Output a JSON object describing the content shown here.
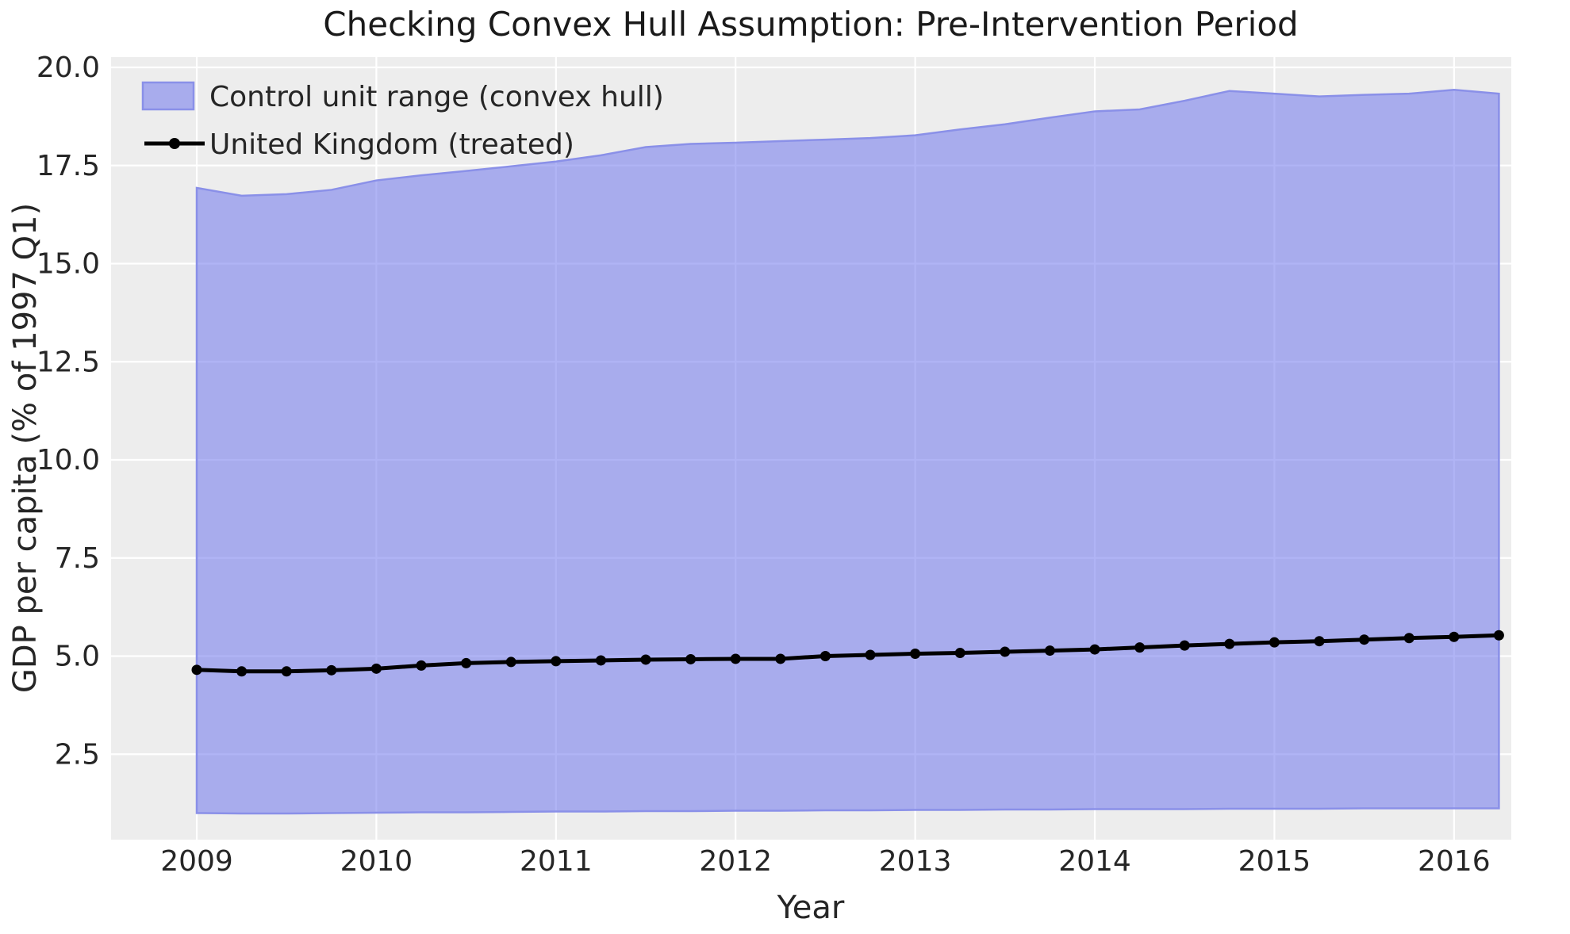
{
  "figure": {
    "title": "Checking Convex Hull Assumption: Pre-Intervention Period",
    "background_color": "#ffffff",
    "plot_background_color": "#ededed",
    "grid_color": "#ffffff"
  },
  "legend": {
    "items": [
      {
        "label": "Control unit range (convex hull)",
        "swatch": "band-swatch"
      },
      {
        "label": "United Kingdom (treated)",
        "swatch": "line-marker-swatch"
      }
    ]
  },
  "colors": {
    "band_fill": "#7076ED",
    "band_fill_opacity": 0.55,
    "band_edge": "#8a90e8",
    "uk_line": "#000000",
    "tick_text": "#262626"
  },
  "chart_data": {
    "type": "area",
    "title": "Checking Convex Hull Assumption: Pre-Intervention Period",
    "xlabel": "Year",
    "ylabel": "GDP per capita (% of 1997 Q1)",
    "x_tick_labels": [
      "2009",
      "2010",
      "2011",
      "2012",
      "2013",
      "2014",
      "2015",
      "2016"
    ],
    "x_tick_values": [
      2009,
      2010,
      2011,
      2012,
      2013,
      2014,
      2015,
      2016
    ],
    "y_tick_labels": [
      "2.5",
      "5.0",
      "7.5",
      "10.0",
      "12.5",
      "15.0",
      "17.5",
      "20.0"
    ],
    "y_tick_values": [
      2.5,
      5.0,
      7.5,
      10.0,
      12.5,
      15.0,
      17.5,
      20.0
    ],
    "xlim": [
      2008.52,
      2016.32
    ],
    "ylim": [
      0.32,
      20.26
    ],
    "grid": true,
    "legend_position": "upper left",
    "x_quarters": [
      2009.0,
      2009.25,
      2009.5,
      2009.75,
      2010.0,
      2010.25,
      2010.5,
      2010.75,
      2011.0,
      2011.25,
      2011.5,
      2011.75,
      2012.0,
      2012.25,
      2012.5,
      2012.75,
      2013.0,
      2013.25,
      2013.5,
      2013.75,
      2014.0,
      2014.25,
      2014.5,
      2014.75,
      2015.0,
      2015.25,
      2015.5,
      2015.75,
      2016.0,
      2016.25
    ],
    "series": [
      {
        "name": "Control unit range (convex hull)",
        "type": "band",
        "upper": [
          16.93,
          16.73,
          16.77,
          16.88,
          17.12,
          17.25,
          17.36,
          17.48,
          17.6,
          17.76,
          17.97,
          18.05,
          18.08,
          18.12,
          18.16,
          18.2,
          18.27,
          18.42,
          18.55,
          18.72,
          18.88,
          18.93,
          19.15,
          19.4,
          19.33,
          19.26,
          19.3,
          19.33,
          19.43,
          19.33
        ],
        "lower": [
          1.0,
          0.99,
          0.99,
          1.0,
          1.01,
          1.02,
          1.02,
          1.03,
          1.04,
          1.04,
          1.05,
          1.05,
          1.06,
          1.06,
          1.07,
          1.07,
          1.08,
          1.08,
          1.09,
          1.09,
          1.1,
          1.1,
          1.1,
          1.11,
          1.11,
          1.11,
          1.12,
          1.12,
          1.12,
          1.12
        ]
      },
      {
        "name": "United Kingdom (treated)",
        "type": "line_markers",
        "values": [
          4.65,
          4.61,
          4.61,
          4.64,
          4.68,
          4.76,
          4.82,
          4.85,
          4.87,
          4.89,
          4.91,
          4.92,
          4.93,
          4.93,
          5.0,
          5.03,
          5.06,
          5.08,
          5.11,
          5.14,
          5.17,
          5.22,
          5.27,
          5.31,
          5.35,
          5.38,
          5.42,
          5.46,
          5.49,
          5.53
        ]
      }
    ]
  }
}
